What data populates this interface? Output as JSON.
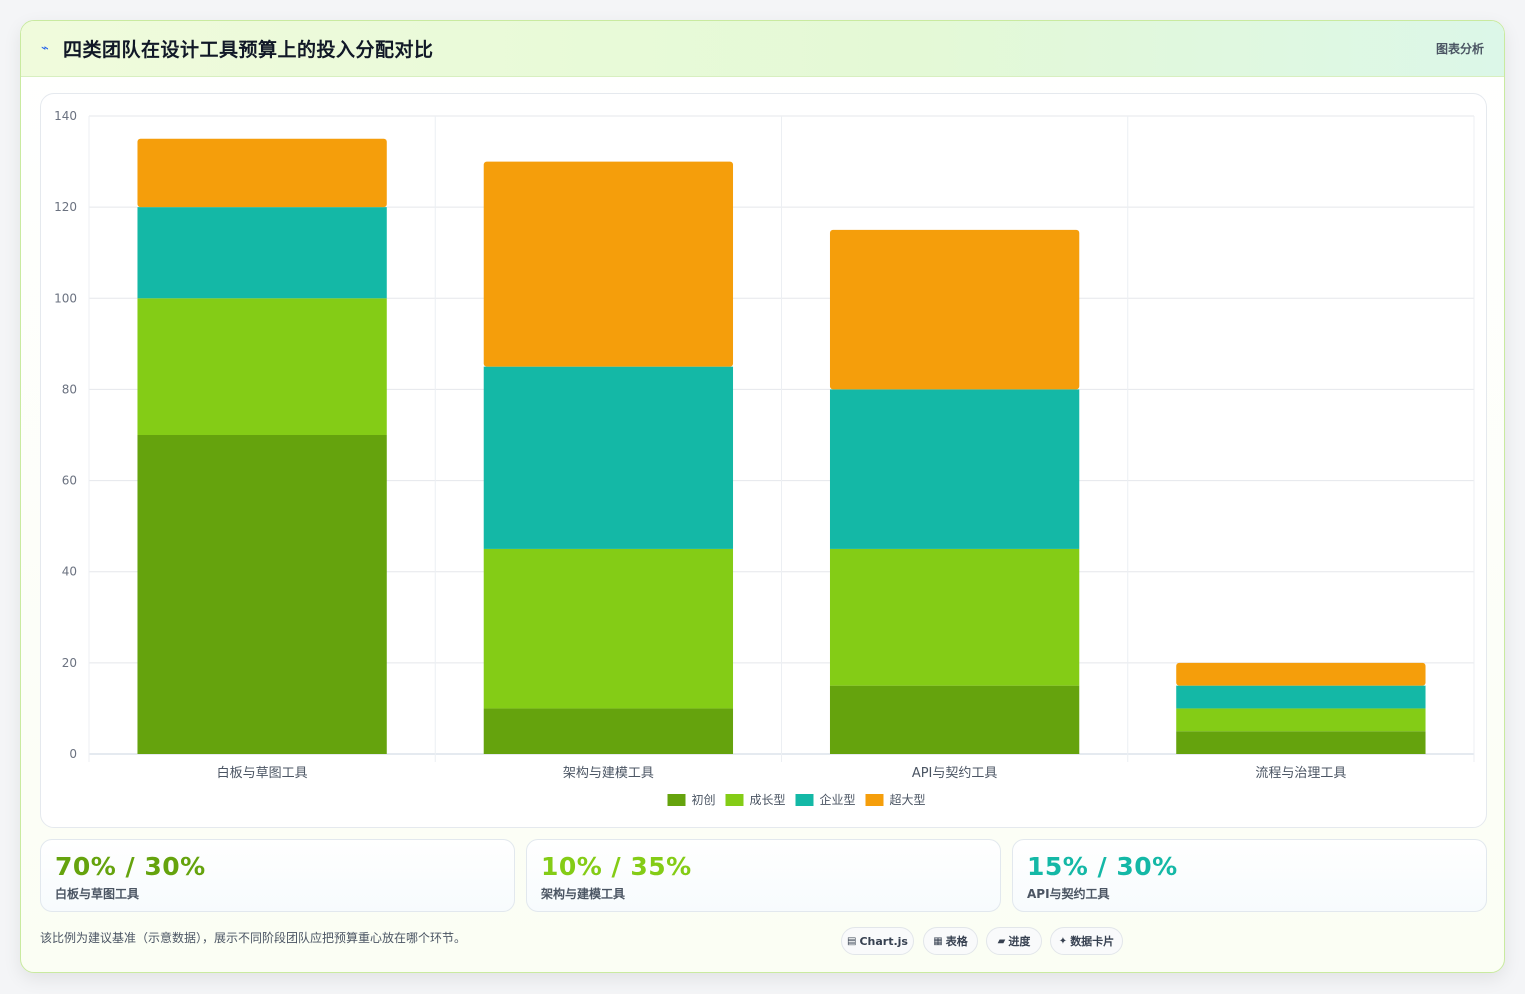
{
  "header": {
    "title_icon": "chart-line-icon",
    "title": "四类团队在设计工具预算上的投入分配对比",
    "badge": "图表分析"
  },
  "chart_data": {
    "type": "bar",
    "stacked": true,
    "categories": [
      "白板与草图工具",
      "架构与建模工具",
      "API与契约工具",
      "流程与治理工具"
    ],
    "series": [
      {
        "name": "初创",
        "color": "#65a30d",
        "values": [
          70,
          10,
          15,
          5
        ]
      },
      {
        "name": "成长型",
        "color": "#84cc16",
        "values": [
          30,
          35,
          30,
          5
        ]
      },
      {
        "name": "企业型",
        "color": "#14b8a6",
        "values": [
          20,
          40,
          35,
          5
        ]
      },
      {
        "name": "超大型",
        "color": "#f59e0b",
        "values": [
          15,
          45,
          35,
          5
        ]
      }
    ],
    "ylim": [
      0,
      140
    ],
    "yticks": [
      0,
      20,
      40,
      60,
      80,
      100,
      120,
      140
    ],
    "grid": true,
    "legend": "bottom"
  },
  "stats": [
    {
      "value": "70% / 30%",
      "label": "白板与草图工具",
      "color": "#65a30d"
    },
    {
      "value": "10% / 35%",
      "label": "架构与建模工具",
      "color": "#84cc16"
    },
    {
      "value": "15% / 30%",
      "label": "API与契约工具",
      "color": "#14b8a6"
    }
  ],
  "footnote": "该比例为建议基准（示意数据），展示不同阶段团队应把预算重心放在哪个环节。",
  "chips": [
    {
      "icon": "▤",
      "icon_name": "chart-icon",
      "label": "Chart.js"
    },
    {
      "icon": "▦",
      "icon_name": "table-icon",
      "label": "表格"
    },
    {
      "icon": "▰",
      "icon_name": "progress-icon",
      "label": "进度"
    },
    {
      "icon": "✦",
      "icon_name": "sparkle-icon",
      "label": "数据卡片"
    }
  ]
}
